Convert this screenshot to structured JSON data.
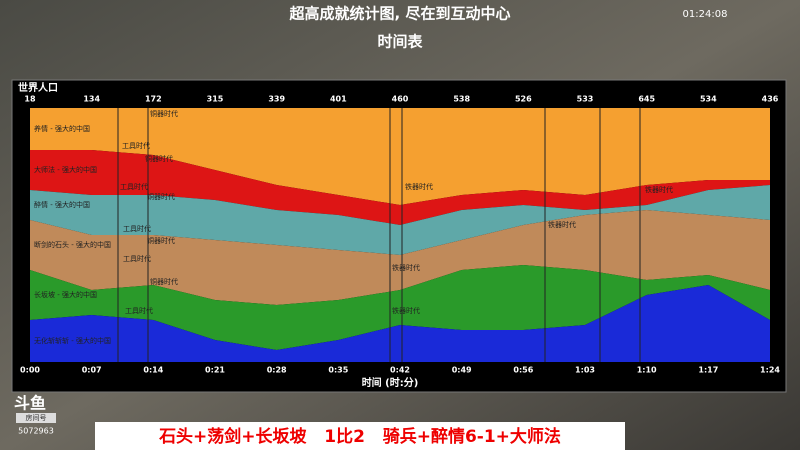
{
  "header": {
    "title": "超高成就统计图, 尽在到互动中心",
    "subtitle": "时间表",
    "clock": "01:24:08"
  },
  "chart": {
    "label": "世界人口",
    "top_values": [
      "18",
      "134",
      "172",
      "315",
      "339",
      "401",
      "460",
      "538",
      "526",
      "533",
      "645",
      "534",
      "436"
    ],
    "x_labels": [
      "0:00",
      "0:07",
      "0:14",
      "0:21",
      "0:28",
      "0:35",
      "0:42",
      "0:49",
      "0:56",
      "1:03",
      "1:10",
      "1:17",
      "1:24"
    ],
    "x_title": "时间 (时:分)",
    "players": [
      "养情 - 强大的中国",
      "大师法 - 强大的中国",
      "醉情 - 强大的中国",
      "断剑的石头 - 强大的中国",
      "长坂坡 - 强大的中国",
      "无化斩斩斩 - 强大的中国"
    ],
    "ages": [
      "铜器时代",
      "工具时代",
      "铜器时代",
      "工具时代",
      "铁器时代",
      "铁器时代",
      "铜器时代",
      "工具时代",
      "铁器时代",
      "铜器时代",
      "工具时代",
      "铁器时代",
      "铜器时代",
      "工具时代",
      "铁器时代"
    ]
  },
  "logo": {
    "name": "斗鱼",
    "room_label": "房间号",
    "room": "5072963"
  },
  "banner": "石头+荡剑+长坂坡   1比2   骑兵+醉情6-1+大师法"
}
